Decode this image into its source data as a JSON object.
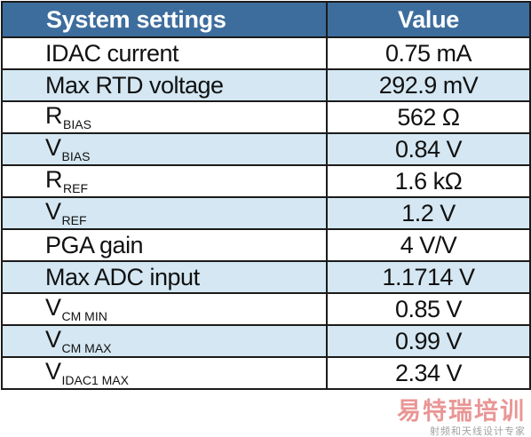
{
  "table": {
    "headers": {
      "setting": "System settings",
      "value": "Value"
    },
    "rows": [
      {
        "setting": "IDAC current",
        "value": "0.75 mA"
      },
      {
        "setting": "Max RTD voltage",
        "value": "292.9 mV"
      },
      {
        "symbol": "R",
        "subscript": "BIAS",
        "value": "562 Ω"
      },
      {
        "symbol": "V",
        "subscript": "BIAS",
        "value": "0.84 V"
      },
      {
        "symbol": "R",
        "subscript": "REF",
        "value": "1.6 kΩ"
      },
      {
        "symbol": "V",
        "subscript": "REF",
        "value": "1.2 V"
      },
      {
        "setting": "PGA gain",
        "value": "4 V/V"
      },
      {
        "setting": "Max ADC input",
        "value": "1.1714 V"
      },
      {
        "symbol": "V",
        "subscript": "CM MIN",
        "value": "0.85 V"
      },
      {
        "symbol": "V",
        "subscript": "CM MAX",
        "value": "0.99 V"
      },
      {
        "symbol": "V",
        "subscript": "IDAC1 MAX",
        "value": "2.34 V"
      }
    ]
  },
  "watermark": {
    "logo_text": "易特瑞培训",
    "tagline": "射频和天线设计专家"
  },
  "colors": {
    "header_bg": "#3d6d9d",
    "header_text": "#ffffff",
    "row_alt_bg": "#d4e7f2",
    "row_bg": "#ffffff",
    "grid": "#1b1b1b",
    "watermark_red": "#d8413f"
  }
}
